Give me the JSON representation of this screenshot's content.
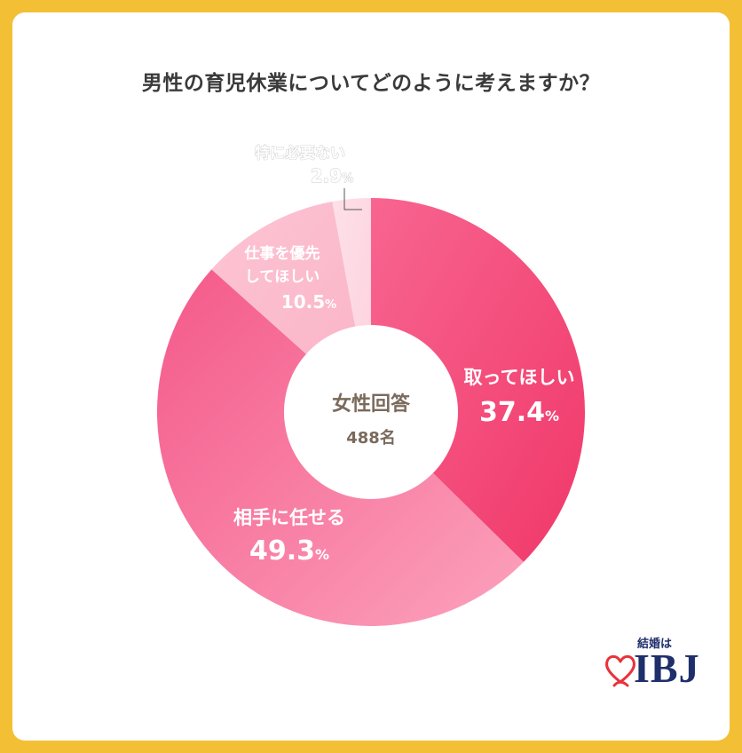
{
  "title": "男性の育児休業についてどのように考えますか？",
  "center": {
    "label": "女性回答",
    "count": "488名"
  },
  "chart_data": {
    "type": "pie",
    "title": "男性の育児休業についてどのように考えますか？",
    "slices": [
      {
        "label": "取ってほしい",
        "value": 37.4,
        "color": "#f0386a",
        "color_light": "#f86590"
      },
      {
        "label": "相手に任せる",
        "value": 49.3,
        "color": "#f4598a",
        "color_light": "#fca2bd"
      },
      {
        "label": "仕事を優先してほしい",
        "value": 10.5,
        "color": "#fab3c6",
        "color_light": "#fcc4d4"
      },
      {
        "label": "特に必要ない",
        "value": 2.9,
        "color": "#fdd2de",
        "color_light": "#fde0e8"
      }
    ],
    "value_suffix": "%"
  },
  "labels": {
    "torite": {
      "line1": "取ってほしい",
      "value": "37.4"
    },
    "makaseru": {
      "line1": "相手に任せる",
      "value": "49.3"
    },
    "shigoto": {
      "line1": "仕事を優先",
      "line2": "してほしい",
      "value": "10.5"
    },
    "fuyou": {
      "line1": "特に必要ない",
      "value": "2.9"
    },
    "percent_sign": "%"
  },
  "logo": {
    "tagline": "結婚は",
    "brand": "IBJ",
    "heart_color": "#e8333b",
    "text_color": "#1f2f6b"
  }
}
